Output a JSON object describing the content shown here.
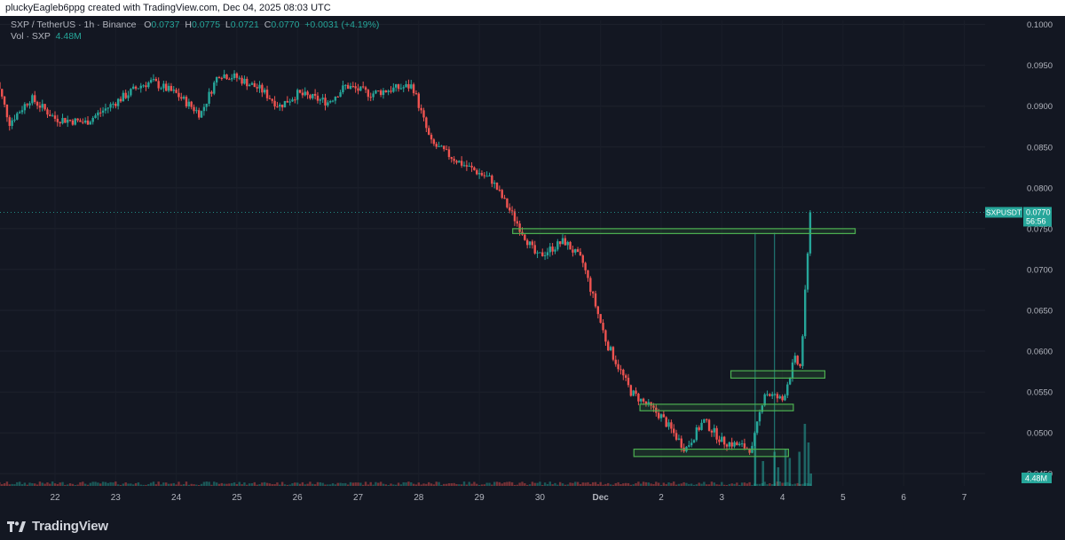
{
  "header": {
    "attribution": "pluckyEagleb6ppg created with TradingView.com, Dec 04, 2025 08:03 UTC"
  },
  "legend": {
    "symbol": "SXP / TetherUS · 1h · Binance",
    "o_label": "O",
    "o_value": "0.0737",
    "h_label": "H",
    "h_value": "0.0775",
    "l_label": "L",
    "l_value": "0.0721",
    "c_label": "C",
    "c_value": "0.0770",
    "change": "+0.0031 (+4.19%)",
    "vol_label": "Vol · SXP",
    "vol_value": "4.48M"
  },
  "price_label": {
    "ticker": "SXPUSDT",
    "price": "0.0770",
    "countdown": "56:56"
  },
  "volume_label": "4.48M",
  "footer": {
    "brand": "TradingView"
  },
  "colors": {
    "up": "#26a69a",
    "down": "#ef5350",
    "box": "#4caf50",
    "background": "#131722"
  },
  "chart_data": {
    "type": "candlestick",
    "timeframe": "1h",
    "x_tick_labels": [
      "22",
      "23",
      "24",
      "25",
      "26",
      "27",
      "28",
      "29",
      "30",
      "Dec",
      "2",
      "3",
      "4",
      "5",
      "6",
      "7"
    ],
    "y_tick_labels": [
      "0.1000",
      "0.0950",
      "0.0900",
      "0.0850",
      "0.0800",
      "0.0750",
      "0.0700",
      "0.0650",
      "0.0600",
      "0.0550",
      "0.0500",
      "0.0450"
    ],
    "ylim": [
      0.0435,
      0.1005
    ],
    "last_price": 0.077,
    "price_path": [
      {
        "day": 21.0,
        "price": 0.094
      },
      {
        "day": 21.25,
        "price": 0.088
      },
      {
        "day": 21.6,
        "price": 0.091
      },
      {
        "day": 22.0,
        "price": 0.0885
      },
      {
        "day": 22.5,
        "price": 0.088
      },
      {
        "day": 23.0,
        "price": 0.0905
      },
      {
        "day": 23.4,
        "price": 0.0925
      },
      {
        "day": 23.6,
        "price": 0.093
      },
      {
        "day": 24.0,
        "price": 0.0915
      },
      {
        "day": 24.4,
        "price": 0.089
      },
      {
        "day": 24.7,
        "price": 0.094
      },
      {
        "day": 25.0,
        "price": 0.0935
      },
      {
        "day": 25.4,
        "price": 0.092
      },
      {
        "day": 25.7,
        "price": 0.09
      },
      {
        "day": 26.0,
        "price": 0.0915
      },
      {
        "day": 26.5,
        "price": 0.0905
      },
      {
        "day": 26.8,
        "price": 0.0925
      },
      {
        "day": 27.2,
        "price": 0.0915
      },
      {
        "day": 27.5,
        "price": 0.092
      },
      {
        "day": 27.9,
        "price": 0.0925
      },
      {
        "day": 28.2,
        "price": 0.0855
      },
      {
        "day": 28.7,
        "price": 0.083
      },
      {
        "day": 29.2,
        "price": 0.081
      },
      {
        "day": 29.6,
        "price": 0.076
      },
      {
        "day": 29.95,
        "price": 0.0715
      },
      {
        "day": 30.4,
        "price": 0.0735
      },
      {
        "day": 30.7,
        "price": 0.071
      },
      {
        "day": 31.1,
        "price": 0.061
      },
      {
        "day": 31.5,
        "price": 0.055
      },
      {
        "day": 32.0,
        "price": 0.052
      },
      {
        "day": 32.4,
        "price": 0.048
      },
      {
        "day": 32.7,
        "price": 0.0515
      },
      {
        "day": 33.0,
        "price": 0.049
      },
      {
        "day": 33.5,
        "price": 0.048
      },
      {
        "day": 33.7,
        "price": 0.055
      },
      {
        "day": 34.0,
        "price": 0.054
      },
      {
        "day": 34.2,
        "price": 0.059
      },
      {
        "day": 34.3,
        "price": 0.058
      },
      {
        "day": 34.4,
        "price": 0.07
      },
      {
        "day": 34.47,
        "price": 0.077
      }
    ],
    "volume": {
      "last": "4.48M",
      "spikes": [
        {
          "day": 33.55,
          "rel": 0.85
        },
        {
          "day": 33.68,
          "rel": 0.4
        },
        {
          "day": 33.87,
          "rel": 0.55
        },
        {
          "day": 33.93,
          "rel": 0.3
        },
        {
          "day": 34.05,
          "rel": 0.6
        },
        {
          "day": 34.12,
          "rel": 0.45
        },
        {
          "day": 34.28,
          "rel": 0.55
        },
        {
          "day": 34.37,
          "rel": 1.0
        },
        {
          "day": 34.43,
          "rel": 0.7
        },
        {
          "day": 34.47,
          "rel": 0.2
        }
      ]
    },
    "annotations": {
      "horizontal_boxes": [
        {
          "day_start": 29.55,
          "day_end": 35.2,
          "price_top": 0.075,
          "price_bottom": 0.0744
        },
        {
          "day_start": 33.15,
          "day_end": 34.7,
          "price_top": 0.0576,
          "price_bottom": 0.0567
        },
        {
          "day_start": 31.65,
          "day_end": 34.18,
          "price_top": 0.0535,
          "price_bottom": 0.0527
        },
        {
          "day_start": 31.55,
          "day_end": 34.1,
          "price_top": 0.048,
          "price_bottom": 0.0471
        }
      ]
    }
  }
}
